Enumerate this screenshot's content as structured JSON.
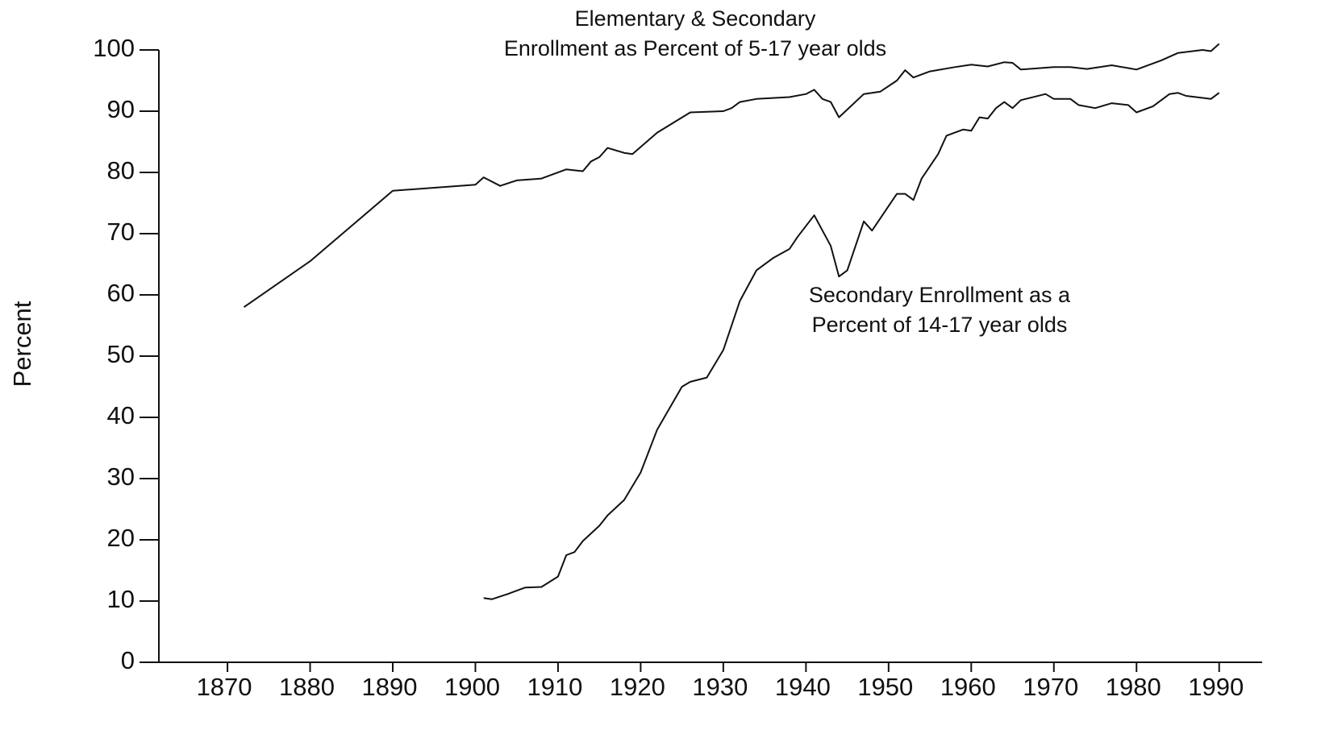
{
  "chart_data": {
    "type": "line",
    "y_label": "Percent",
    "xlim": [
      1861.7,
      1995.2
    ],
    "xticks": [
      1870,
      1880,
      1890,
      1900,
      1910,
      1920,
      1930,
      1940,
      1950,
      1960,
      1970,
      1980,
      1990
    ],
    "ylim": [
      0,
      100
    ],
    "yticks": [
      0,
      10,
      20,
      30,
      40,
      50,
      60,
      70,
      80,
      90,
      100
    ],
    "grid": false,
    "series": [
      {
        "name": [
          "Elementary & Secondary",
          "Enrollment as Percent of 5-17 year olds"
        ],
        "color": "#111111",
        "x": [
          1872,
          1880,
          1890,
          1900,
          1901,
          1903,
          1905,
          1908,
          1911,
          1913,
          1914,
          1915,
          1916,
          1918,
          1919,
          1922,
          1926,
          1930,
          1931,
          1932,
          1934,
          1938,
          1940,
          1941,
          1942,
          1943,
          1944,
          1947,
          1949,
          1951,
          1952,
          1953,
          1955,
          1958,
          1960,
          1962,
          1964,
          1965,
          1966,
          1970,
          1972,
          1974,
          1977,
          1980,
          1983,
          1985,
          1988,
          1989,
          1990
        ],
        "values": [
          58,
          65.5,
          77,
          78,
          79.2,
          77.8,
          78.7,
          79,
          80.5,
          80.2,
          81.8,
          82.5,
          84,
          83.2,
          83,
          86.5,
          89.8,
          90,
          90.5,
          91.5,
          92,
          92.3,
          92.8,
          93.5,
          92,
          91.5,
          89,
          92.8,
          93.2,
          95,
          96.7,
          95.5,
          96.5,
          97.2,
          97.6,
          97.3,
          98,
          97.9,
          96.8,
          97.2,
          97.2,
          96.9,
          97.5,
          96.8,
          98.3,
          99.5,
          100,
          99.8,
          101
        ]
      },
      {
        "name": [
          "Secondary Enrollment as a",
          "Percent of 14-17 year olds"
        ],
        "color": "#111111",
        "x": [
          1901,
          1902,
          1904,
          1906,
          1908,
          1910,
          1911,
          1912,
          1913,
          1915,
          1916,
          1918,
          1920,
          1922,
          1925,
          1926,
          1928,
          1930,
          1932,
          1934,
          1936,
          1938,
          1939,
          1941,
          1943,
          1944,
          1945,
          1947,
          1948,
          1950,
          1951,
          1952,
          1953,
          1954,
          1956,
          1957,
          1959,
          1960,
          1961,
          1962,
          1963,
          1964,
          1965,
          1966,
          1969,
          1970,
          1972,
          1973,
          1975,
          1977,
          1979,
          1980,
          1982,
          1984,
          1985,
          1986,
          1989,
          1990
        ],
        "values": [
          10.5,
          10.3,
          11.2,
          12.2,
          12.3,
          14,
          17.5,
          18,
          19.8,
          22.3,
          24,
          26.5,
          31,
          38,
          45,
          45.8,
          46.5,
          51,
          59,
          64,
          66,
          67.5,
          69.5,
          73,
          68,
          63,
          64,
          72,
          70.5,
          74.5,
          76.5,
          76.5,
          75.5,
          79,
          83,
          86,
          87,
          86.8,
          89,
          88.8,
          90.5,
          91.5,
          90.5,
          91.8,
          92.8,
          92,
          92,
          91,
          90.5,
          91.3,
          91,
          89.8,
          90.8,
          92.8,
          93,
          92.5,
          92,
          93
        ]
      }
    ]
  }
}
